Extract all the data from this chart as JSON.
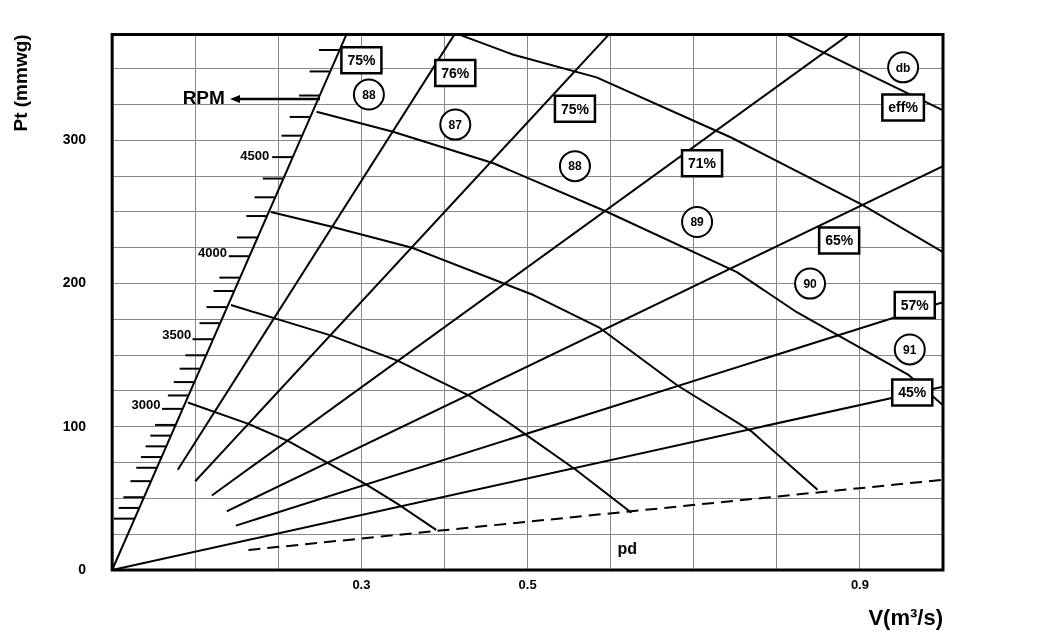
{
  "chart_data": {
    "type": "line",
    "xlabel": "V(m³/s)",
    "ylabel": "Pt (mmwg)",
    "xlim": [
      0,
      1.0
    ],
    "ylim": [
      0,
      374
    ],
    "xticks": [
      {
        "value": 0.1,
        "label": null
      },
      {
        "value": 0.2,
        "label": null
      },
      0.3,
      {
        "value": 0.4,
        "label": null
      },
      0.5,
      {
        "value": 0.6,
        "label": null
      },
      {
        "value": 0.7,
        "label": null
      },
      {
        "value": 0.8,
        "label": null
      },
      0.9
    ],
    "yticks": [
      0,
      {
        "value": 25,
        "label": null
      },
      {
        "value": 50,
        "label": null
      },
      {
        "value": 75,
        "label": null
      },
      100,
      {
        "value": 125,
        "label": null
      },
      {
        "value": 150,
        "label": null
      },
      {
        "value": 175,
        "label": null
      },
      200,
      {
        "value": 225,
        "label": null
      },
      {
        "value": 250,
        "label": null
      },
      {
        "value": 275,
        "label": null
      },
      300,
      {
        "value": 325,
        "label": null
      },
      {
        "value": 350,
        "label": null
      }
    ],
    "grid": true,
    "legend": false,
    "line_style": "solid",
    "series": [
      {
        "color": "#000000",
        "x": [
          0,
          0.282
        ],
        "values": [
          0,
          374
        ]
      },
      {
        "color": "#000000",
        "x": [
          0.079,
          0.412
        ],
        "values": [
          70,
          374
        ]
      },
      {
        "color": "#000000",
        "x": [
          0.1,
          0.598
        ],
        "values": [
          62,
          374
        ]
      },
      {
        "color": "#000000",
        "x": [
          0.12,
          0.887
        ],
        "values": [
          52,
          374
        ]
      },
      {
        "color": "#000000",
        "x": [
          0.138,
          1.0
        ],
        "values": [
          41,
          282
        ]
      },
      {
        "color": "#000000",
        "x": [
          0.149,
          1.0
        ],
        "values": [
          31,
          187
        ]
      },
      {
        "color": "#000000",
        "x": [
          0,
          1.0
        ],
        "values": [
          0,
          128
        ]
      },
      {
        "color": "#000000",
        "line_style": "dashed",
        "x": [
          0.164,
          1.0
        ],
        "values": [
          14,
          63
        ]
      },
      {
        "color": "#000000",
        "x": [
          0.091,
          0.164,
          0.212,
          0.262,
          0.305,
          0.344,
          0.39
        ],
        "values": [
          117,
          102,
          90,
          74,
          60,
          46,
          28
        ]
      },
      {
        "color": "#000000",
        "x": [
          0.143,
          0.262,
          0.344,
          0.429,
          0.482,
          0.558,
          0.625
        ],
        "values": [
          185,
          164,
          146,
          122,
          101,
          70,
          40
        ]
      },
      {
        "color": "#000000",
        "x": [
          0.191,
          0.262,
          0.361,
          0.507,
          0.587,
          0.68,
          0.769,
          0.849
        ],
        "values": [
          250,
          240,
          225,
          192,
          169,
          129,
          97,
          56
        ]
      },
      {
        "color": "#000000",
        "x": [
          0.246,
          0.338,
          0.459,
          0.596,
          0.752,
          0.824,
          0.907,
          0.959,
          1.0
        ],
        "values": [
          320,
          306,
          284,
          250,
          208,
          180,
          153,
          136,
          115
        ]
      },
      {
        "color": "#000000",
        "x": [
          0.417,
          0.482,
          0.583,
          0.745,
          0.903,
          1.0
        ],
        "values": [
          374,
          360,
          344,
          302,
          255,
          222
        ]
      },
      {
        "color": "#000000",
        "x": [
          0.811,
          1.0
        ],
        "values": [
          374,
          321
        ]
      }
    ],
    "annotations": [
      {
        "text": "4500",
        "x": 0.218,
        "y": 289
      },
      {
        "text": "4000",
        "x": 0.167,
        "y": 221
      },
      {
        "text": "3500",
        "x": 0.124,
        "y": 164
      },
      {
        "text": "3000",
        "x": 0.087,
        "y": 115
      },
      "RPM",
      {
        "text": "88",
        "x": 0.309,
        "y": 332
      },
      {
        "text": "87",
        "x": 0.413,
        "y": 311
      },
      {
        "text": "88",
        "x": 0.557,
        "y": 282
      },
      {
        "text": "89",
        "x": 0.704,
        "y": 243
      },
      {
        "text": "90",
        "x": 0.84,
        "y": 200
      },
      {
        "text": "91",
        "x": 0.96,
        "y": 154
      },
      {
        "text": "db",
        "x": 0.952,
        "y": 351
      },
      {
        "text": "eff%",
        "x": 0.952,
        "y": 323
      },
      {
        "text": "75%",
        "x": 0.3,
        "y": 356
      },
      {
        "text": "76%",
        "x": 0.413,
        "y": 347
      },
      {
        "text": "75%",
        "x": 0.557,
        "y": 322
      },
      {
        "text": "71%",
        "x": 0.71,
        "y": 284
      },
      {
        "text": "65%",
        "x": 0.875,
        "y": 230
      },
      {
        "text": "57%",
        "x": 0.966,
        "y": 185
      },
      {
        "text": "45%",
        "x": 0.963,
        "y": 124
      },
      "pd"
    ]
  }
}
